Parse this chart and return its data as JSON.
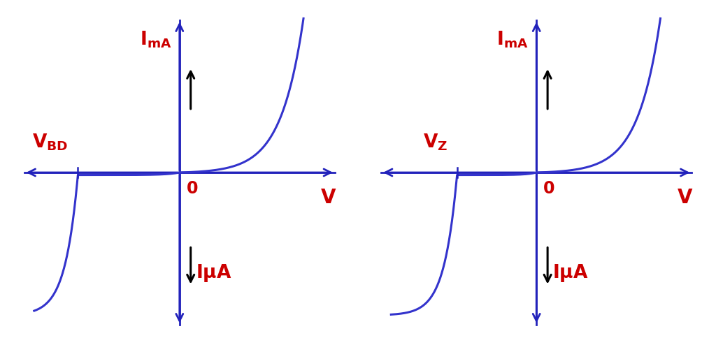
{
  "bg_color": "#ffffff",
  "curve_color": "#3333cc",
  "axis_color": "#2222bb",
  "text_color_red": "#cc0000",
  "text_color_black": "#000000",
  "label_v": "V",
  "label_0": "0",
  "figsize": [
    10.24,
    4.94
  ],
  "dpi": 100,
  "xlim": [
    -5.2,
    5.2
  ],
  "ylim": [
    -5.2,
    5.2
  ],
  "left": {
    "vbd": -3.2,
    "label": "V_{BD}"
  },
  "right": {
    "vbd": -2.5,
    "label": "V_Z"
  }
}
